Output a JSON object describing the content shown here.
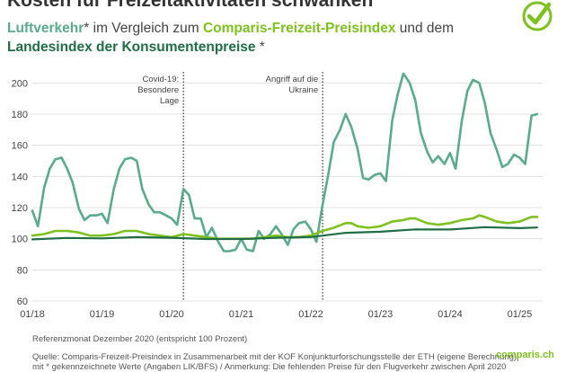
{
  "header": {
    "title": "Kosten für Freizeitaktivitäten schwanken",
    "subtitle_air": "Luftverkehr",
    "subtitle_mid1": "* im Vergleich zum ",
    "subtitle_fz": "Comparis-Freizeit-Preisindex",
    "subtitle_mid2": " und dem",
    "subtitle_lik": "Landesindex der Konsumentenpreise",
    "subtitle_end": " *"
  },
  "annotations": [
    {
      "lines": [
        "Covid-19:",
        "Besondere",
        "Lage"
      ],
      "x": 2020.17
    },
    {
      "lines": [
        "Angriff auf die",
        "Ukraine"
      ],
      "x": 2022.17
    }
  ],
  "footer": {
    "reference": "Referenzmonat Dezember 2020 (entspricht 100 Prozent)",
    "source_line1": "Quelle: Comparis-Freizeit-Preisindex in Zusammenarbeit mit der KOF Konjunkturforschungsstelle der ETH (eigene Berechnung)|",
    "source_line2": "mit * gekennzeichnete Werte (Angaben LIK/BFS) / Anmerkung: Die fehlenden Preise für den Flugverkehr zwischen April 2020",
    "logo": "comparis.ch"
  },
  "colors": {
    "air": "#5aab8d",
    "freizeit": "#7dc21e",
    "lik": "#1f6e46",
    "grid": "#e0e0e0",
    "annotation_line": "#333333"
  },
  "chart_data": {
    "type": "line",
    "xlim": [
      2018.0,
      2025.33
    ],
    "ylim": [
      60,
      210
    ],
    "yticks": [
      60,
      80,
      100,
      120,
      140,
      160,
      180,
      200
    ],
    "xticks": [
      {
        "value": 2018.0,
        "label": "01/18"
      },
      {
        "value": 2019.0,
        "label": "01/19"
      },
      {
        "value": 2020.0,
        "label": "01/20"
      },
      {
        "value": 2021.0,
        "label": "01/21"
      },
      {
        "value": 2022.0,
        "label": "01/22"
      },
      {
        "value": 2023.0,
        "label": "01/23"
      },
      {
        "value": 2024.0,
        "label": "01/24"
      },
      {
        "value": 2025.0,
        "label": "01/25"
      }
    ],
    "grid": true,
    "series": [
      {
        "name": "Luftverkehr",
        "color": "#5aab8d",
        "points": [
          [
            2018.0,
            118
          ],
          [
            2018.08,
            108
          ],
          [
            2018.17,
            133
          ],
          [
            2018.25,
            145
          ],
          [
            2018.33,
            151
          ],
          [
            2018.42,
            152
          ],
          [
            2018.5,
            145
          ],
          [
            2018.58,
            136
          ],
          [
            2018.67,
            119
          ],
          [
            2018.75,
            112
          ],
          [
            2018.83,
            115
          ],
          [
            2018.92,
            115
          ],
          [
            2019.0,
            116
          ],
          [
            2019.08,
            110
          ],
          [
            2019.17,
            132
          ],
          [
            2019.25,
            145
          ],
          [
            2019.33,
            151
          ],
          [
            2019.42,
            152
          ],
          [
            2019.5,
            150
          ],
          [
            2019.58,
            132
          ],
          [
            2019.67,
            122
          ],
          [
            2019.75,
            117
          ],
          [
            2019.83,
            117
          ],
          [
            2019.92,
            115
          ],
          [
            2020.0,
            113
          ],
          [
            2020.08,
            109
          ],
          [
            2020.17,
            132
          ],
          [
            2020.25,
            128
          ],
          [
            2020.33,
            113
          ],
          [
            2020.42,
            113
          ],
          [
            2020.5,
            101
          ],
          [
            2020.58,
            107
          ],
          [
            2020.67,
            98
          ],
          [
            2020.75,
            92
          ],
          [
            2020.83,
            92
          ],
          [
            2020.92,
            93
          ],
          [
            2021.0,
            100
          ],
          [
            2021.08,
            93
          ],
          [
            2021.17,
            92
          ],
          [
            2021.25,
            105
          ],
          [
            2021.33,
            100
          ],
          [
            2021.42,
            103
          ],
          [
            2021.5,
            108
          ],
          [
            2021.58,
            103
          ],
          [
            2021.67,
            96
          ],
          [
            2021.75,
            106
          ],
          [
            2021.83,
            110
          ],
          [
            2021.92,
            111
          ],
          [
            2022.0,
            106
          ],
          [
            2022.08,
            98
          ],
          [
            2022.17,
            122
          ],
          [
            2022.25,
            141
          ],
          [
            2022.33,
            162
          ],
          [
            2022.42,
            170
          ],
          [
            2022.5,
            180
          ],
          [
            2022.58,
            172
          ],
          [
            2022.67,
            158
          ],
          [
            2022.75,
            139
          ],
          [
            2022.83,
            138
          ],
          [
            2022.92,
            141
          ],
          [
            2023.0,
            142
          ],
          [
            2023.08,
            137
          ],
          [
            2023.17,
            176
          ],
          [
            2023.25,
            193
          ],
          [
            2023.33,
            206
          ],
          [
            2023.42,
            200
          ],
          [
            2023.5,
            189
          ],
          [
            2023.58,
            168
          ],
          [
            2023.67,
            156
          ],
          [
            2023.75,
            149
          ],
          [
            2023.83,
            153
          ],
          [
            2023.92,
            148
          ],
          [
            2024.0,
            155
          ],
          [
            2024.08,
            145
          ],
          [
            2024.17,
            176
          ],
          [
            2024.25,
            195
          ],
          [
            2024.33,
            202
          ],
          [
            2024.42,
            200
          ],
          [
            2024.5,
            187
          ],
          [
            2024.58,
            168
          ],
          [
            2024.67,
            157
          ],
          [
            2024.75,
            146
          ],
          [
            2024.83,
            148
          ],
          [
            2024.92,
            154
          ],
          [
            2025.0,
            152
          ],
          [
            2025.08,
            148
          ],
          [
            2025.17,
            179
          ],
          [
            2025.25,
            180
          ]
        ]
      },
      {
        "name": "Comparis-Freizeit-Preisindex",
        "color": "#7dc21e",
        "points": [
          [
            2018.0,
            102
          ],
          [
            2018.17,
            103
          ],
          [
            2018.33,
            105
          ],
          [
            2018.5,
            105
          ],
          [
            2018.67,
            104
          ],
          [
            2018.83,
            102
          ],
          [
            2019.0,
            102
          ],
          [
            2019.17,
            103
          ],
          [
            2019.33,
            105
          ],
          [
            2019.5,
            105
          ],
          [
            2019.67,
            103
          ],
          [
            2019.83,
            102
          ],
          [
            2020.0,
            101
          ],
          [
            2020.17,
            103
          ],
          [
            2020.33,
            102
          ],
          [
            2020.5,
            101
          ],
          [
            2020.67,
            100
          ],
          [
            2020.83,
            100
          ],
          [
            2021.0,
            100
          ],
          [
            2021.17,
            100
          ],
          [
            2021.33,
            101
          ],
          [
            2021.5,
            102
          ],
          [
            2021.67,
            101
          ],
          [
            2021.83,
            101
          ],
          [
            2022.0,
            102
          ],
          [
            2022.17,
            105
          ],
          [
            2022.33,
            107
          ],
          [
            2022.5,
            110
          ],
          [
            2022.58,
            110
          ],
          [
            2022.67,
            108
          ],
          [
            2022.83,
            107
          ],
          [
            2023.0,
            108
          ],
          [
            2023.17,
            111
          ],
          [
            2023.33,
            112
          ],
          [
            2023.42,
            113
          ],
          [
            2023.5,
            113
          ],
          [
            2023.67,
            110
          ],
          [
            2023.83,
            109
          ],
          [
            2024.0,
            110
          ],
          [
            2024.17,
            112
          ],
          [
            2024.33,
            113
          ],
          [
            2024.42,
            115
          ],
          [
            2024.5,
            114
          ],
          [
            2024.67,
            111
          ],
          [
            2024.83,
            110
          ],
          [
            2025.0,
            111
          ],
          [
            2025.17,
            114
          ],
          [
            2025.25,
            114
          ]
        ]
      },
      {
        "name": "Landesindex der Konsumentenpreise",
        "color": "#1f6e46",
        "points": [
          [
            2018.0,
            99.6
          ],
          [
            2018.5,
            100.5
          ],
          [
            2019.0,
            100.2
          ],
          [
            2019.5,
            101.0
          ],
          [
            2020.0,
            100.6
          ],
          [
            2020.5,
            99.8
          ],
          [
            2021.0,
            99.8
          ],
          [
            2021.5,
            100.6
          ],
          [
            2022.0,
            101.1
          ],
          [
            2022.5,
            103.8
          ],
          [
            2023.0,
            104.5
          ],
          [
            2023.5,
            106.0
          ],
          [
            2024.0,
            105.9
          ],
          [
            2024.5,
            107.4
          ],
          [
            2025.0,
            106.8
          ],
          [
            2025.25,
            107.2
          ]
        ]
      }
    ]
  }
}
